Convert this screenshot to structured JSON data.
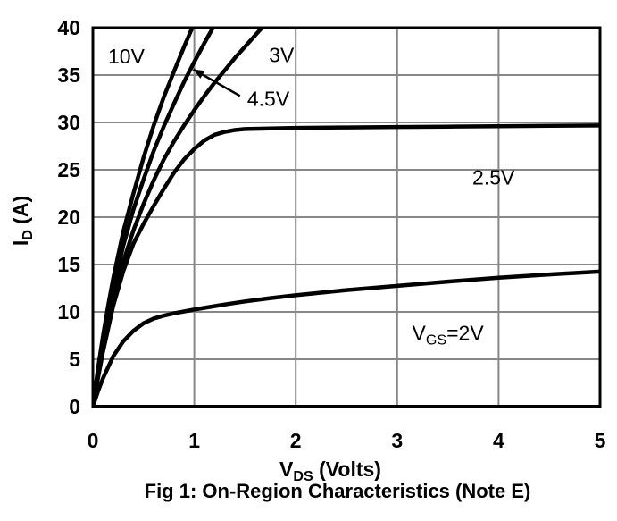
{
  "figure": {
    "caption": "Fig 1: On-Region Characteristics (Note E)"
  },
  "style": {
    "background": "#ffffff",
    "curve_color": "#000000",
    "grid_color": "#878787",
    "border_color": "#000000",
    "text_color": "#000000"
  },
  "chart_data": {
    "type": "line",
    "title": "Fig 1: On-Region Characteristics (Note E)",
    "xlabel": "VDS (Volts)",
    "ylabel": "ID (A)",
    "xlabel_parts": [
      {
        "t": "V"
      },
      {
        "t": "DS",
        "sub": true
      },
      {
        "t": " (Volts)"
      }
    ],
    "ylabel_parts": [
      {
        "t": "I"
      },
      {
        "t": "D",
        "sub": true
      },
      {
        "t": " (A)"
      }
    ],
    "xlim": [
      0,
      5
    ],
    "ylim": [
      0,
      40
    ],
    "x_ticks": [
      0,
      1,
      2,
      3,
      4,
      5
    ],
    "y_ticks": [
      0,
      5,
      10,
      15,
      20,
      25,
      30,
      35,
      40
    ],
    "grid": true,
    "legend": "none (curves labeled inline by VGS value)",
    "series": [
      {
        "name": "VGS=10V",
        "label": "10V",
        "points": [
          [
            0,
            0
          ],
          [
            0.05,
            4
          ],
          [
            0.1,
            7.5
          ],
          [
            0.15,
            10.6
          ],
          [
            0.2,
            13.5
          ],
          [
            0.3,
            18.5
          ],
          [
            0.4,
            22.5
          ],
          [
            0.5,
            26.3
          ],
          [
            0.6,
            29.7
          ],
          [
            0.7,
            32.7
          ],
          [
            0.8,
            35.4
          ],
          [
            0.9,
            38
          ],
          [
            1.0,
            40.5
          ]
        ]
      },
      {
        "name": "VGS=4.5V",
        "label": "4.5V",
        "points": [
          [
            0,
            0
          ],
          [
            0.05,
            3.6
          ],
          [
            0.1,
            6.9
          ],
          [
            0.15,
            9.9
          ],
          [
            0.2,
            12.5
          ],
          [
            0.3,
            17
          ],
          [
            0.4,
            20.8
          ],
          [
            0.5,
            24
          ],
          [
            0.6,
            27
          ],
          [
            0.7,
            29.6
          ],
          [
            0.8,
            32
          ],
          [
            0.9,
            34.3
          ],
          [
            1.0,
            36.4
          ],
          [
            1.1,
            38.4
          ],
          [
            1.2,
            40.3
          ]
        ]
      },
      {
        "name": "VGS=3V",
        "label": "3V",
        "points": [
          [
            0,
            0
          ],
          [
            0.05,
            3.2
          ],
          [
            0.1,
            6.2
          ],
          [
            0.15,
            8.9
          ],
          [
            0.2,
            11.3
          ],
          [
            0.3,
            15.3
          ],
          [
            0.4,
            18.6
          ],
          [
            0.5,
            21.4
          ],
          [
            0.6,
            23.9
          ],
          [
            0.7,
            26.1
          ],
          [
            0.8,
            28
          ],
          [
            0.9,
            29.7
          ],
          [
            1.0,
            31.3
          ],
          [
            1.1,
            32.8
          ],
          [
            1.2,
            34.2
          ],
          [
            1.3,
            35.5
          ],
          [
            1.4,
            36.8
          ],
          [
            1.5,
            38
          ],
          [
            1.6,
            39.2
          ],
          [
            1.7,
            40.4
          ]
        ]
      },
      {
        "name": "VGS=2.5V",
        "label": "2.5V",
        "points": [
          [
            0,
            0
          ],
          [
            0.05,
            3
          ],
          [
            0.1,
            5.8
          ],
          [
            0.2,
            10.6
          ],
          [
            0.3,
            14.3
          ],
          [
            0.4,
            17.2
          ],
          [
            0.5,
            19.3
          ],
          [
            0.6,
            21.2
          ],
          [
            0.7,
            23
          ],
          [
            0.8,
            24.7
          ],
          [
            0.9,
            26.1
          ],
          [
            1.0,
            27.2
          ],
          [
            1.1,
            28.1
          ],
          [
            1.2,
            28.7
          ],
          [
            1.3,
            29
          ],
          [
            1.4,
            29.2
          ],
          [
            1.5,
            29.3
          ],
          [
            1.75,
            29.37
          ],
          [
            2.0,
            29.42
          ],
          [
            2.5,
            29.47
          ],
          [
            3.0,
            29.52
          ],
          [
            3.5,
            29.56
          ],
          [
            4.0,
            29.6
          ],
          [
            4.5,
            29.64
          ],
          [
            5.0,
            29.68
          ]
        ]
      },
      {
        "name": "VGS=2V",
        "label": "VGS=2V",
        "points": [
          [
            0,
            0
          ],
          [
            0.05,
            1.6
          ],
          [
            0.1,
            3.0
          ],
          [
            0.2,
            5.3
          ],
          [
            0.3,
            6.9
          ],
          [
            0.4,
            8.0
          ],
          [
            0.5,
            8.8
          ],
          [
            0.6,
            9.3
          ],
          [
            0.7,
            9.6
          ],
          [
            0.8,
            9.85
          ],
          [
            0.9,
            10.05
          ],
          [
            1.0,
            10.25
          ],
          [
            1.25,
            10.7
          ],
          [
            1.5,
            11.1
          ],
          [
            1.75,
            11.45
          ],
          [
            2.0,
            11.75
          ],
          [
            2.5,
            12.3
          ],
          [
            3.0,
            12.75
          ],
          [
            3.5,
            13.2
          ],
          [
            4.0,
            13.6
          ],
          [
            4.5,
            13.95
          ],
          [
            5.0,
            14.25
          ]
        ]
      }
    ],
    "annotations": [
      {
        "id": "label-10v",
        "x": 0.33,
        "y": 37.0,
        "parts": [
          {
            "t": "10V"
          }
        ]
      },
      {
        "id": "label-3v",
        "x": 1.86,
        "y": 37.1,
        "parts": [
          {
            "t": "3V"
          }
        ]
      },
      {
        "id": "label-4.5v",
        "x": 1.73,
        "y": 32.5,
        "parts": [
          {
            "t": "4.5V"
          }
        ]
      },
      {
        "id": "label-2.5v",
        "x": 3.95,
        "y": 24.2,
        "parts": [
          {
            "t": "2.5V"
          }
        ]
      },
      {
        "id": "label-2v",
        "x": 3.5,
        "y": 7.8,
        "parts": [
          {
            "t": "V"
          },
          {
            "t": "GS",
            "sub": true
          },
          {
            "t": "=2V"
          }
        ]
      }
    ],
    "callout_arrow": {
      "from_x": 1.45,
      "from_y": 32.8,
      "to_x": 0.99,
      "to_y": 35.6,
      "points_to": "VGS=4.5V curve"
    }
  }
}
